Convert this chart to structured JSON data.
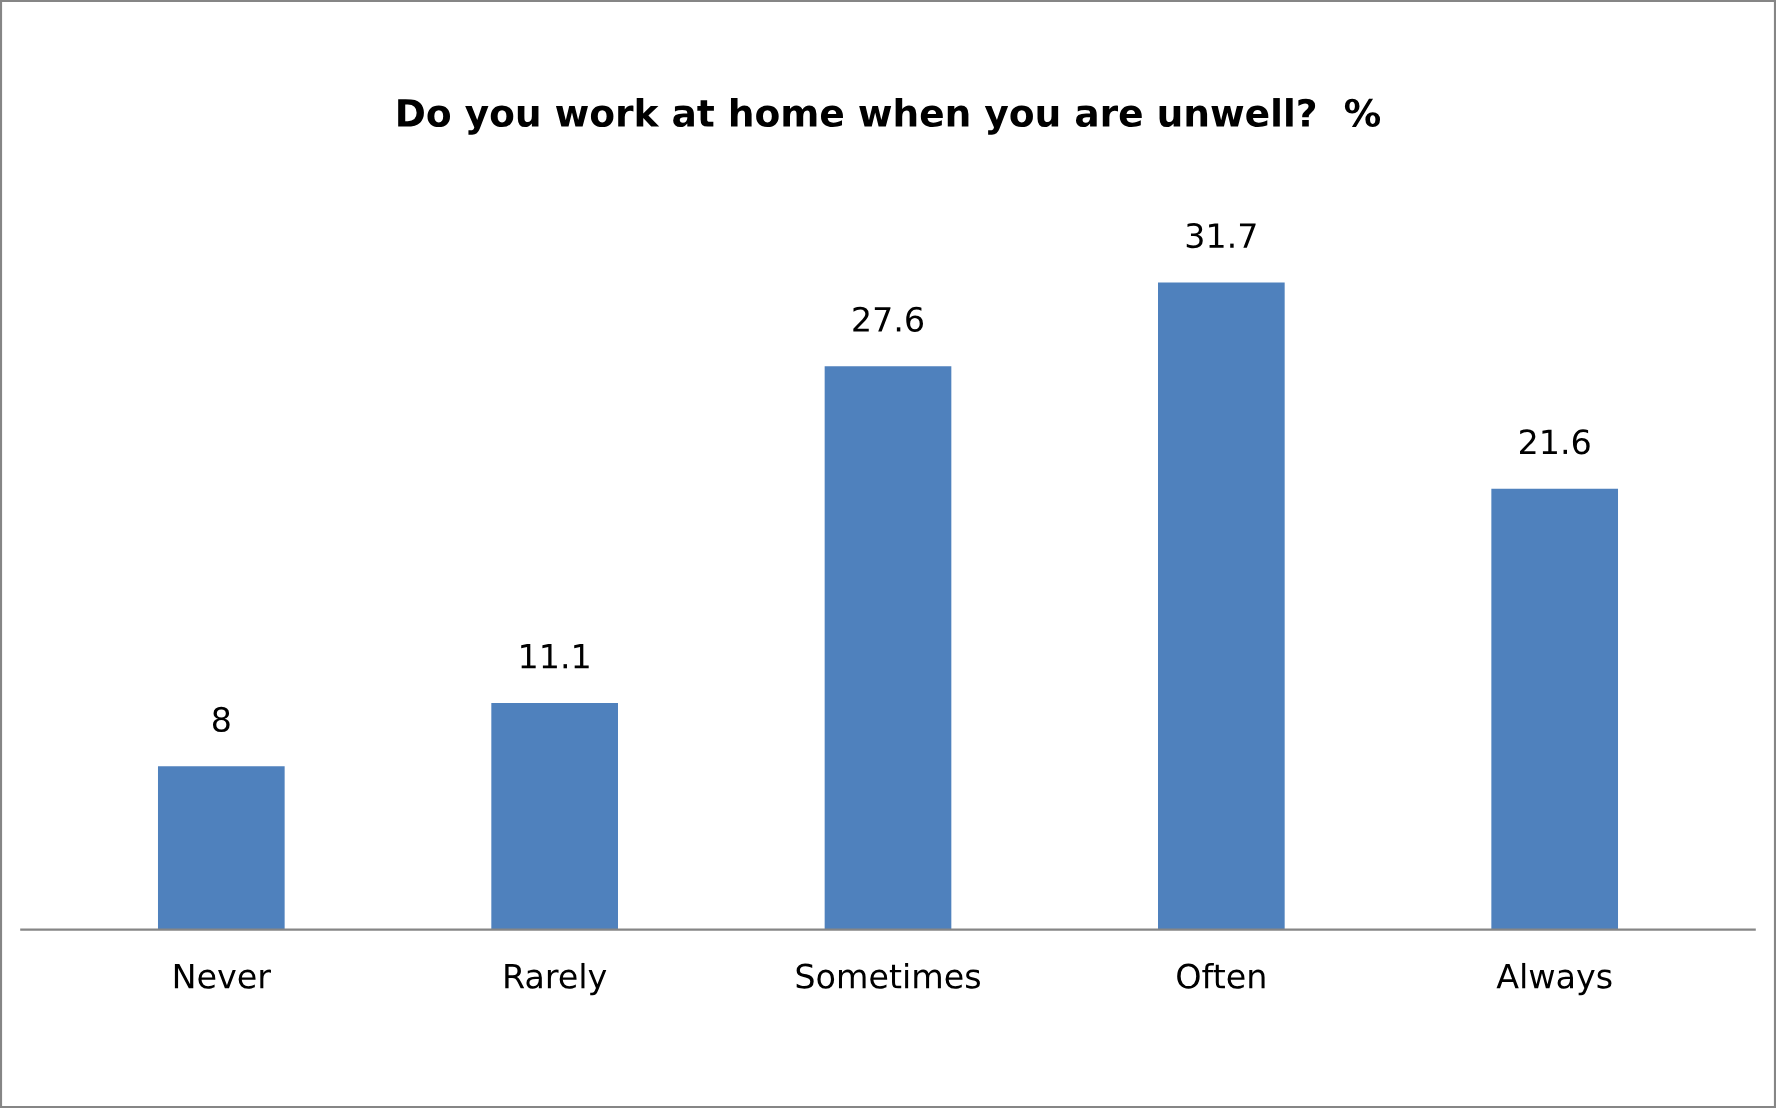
{
  "chart_data": {
    "type": "bar",
    "title": "Do you work at home when you are unwell?  %",
    "categories": [
      "Never",
      "Rarely",
      "Sometimes",
      "Often",
      "Always"
    ],
    "values": [
      8,
      11.1,
      27.6,
      31.7,
      21.6
    ],
    "color": "#4f81bd",
    "data_labels": true,
    "grid": false,
    "legend": false
  }
}
